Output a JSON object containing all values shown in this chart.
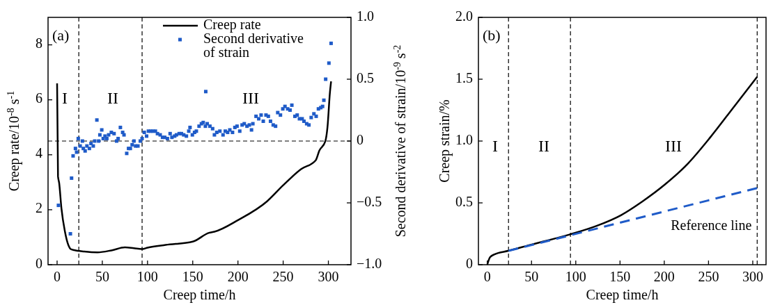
{
  "chart_data": [
    {
      "type": "line",
      "xlabel": "Creep time/h",
      "ylabel": "Creep rate/10$^{-8}$ s$^{-1}$",
      "y2label": "Second derivative of strain/10$^{-9}$ s$^{-2}$",
      "xlim": [
        -10,
        325
      ],
      "xticks": [
        0,
        50,
        100,
        150,
        200,
        250,
        300
      ],
      "ylim": [
        0,
        9
      ],
      "yticks": [
        0,
        2,
        4,
        6,
        8
      ],
      "y2lim": [
        -1,
        1
      ],
      "y2ticks": [
        {
          "value": -1,
          "label": "−1.0"
        },
        {
          "value": -0.5,
          "label": "−0.5"
        },
        0,
        0.5,
        {
          "value": 1,
          "label": "1.0"
        }
      ],
      "grid": false,
      "legend": "top right",
      "ref_lines": [
        {
          "axis": "x",
          "value": 24,
          "color": "#000000",
          "line_style": "dashed"
        },
        {
          "axis": "x",
          "value": 94,
          "color": "#000000",
          "line_style": "dashed"
        },
        {
          "axis": "y2",
          "value": 0,
          "color": "#000000",
          "line_style": "dashed"
        }
      ],
      "annotations": [
        "(a)",
        "I",
        "II",
        "III"
      ],
      "series": [
        {
          "name": "Creep rate",
          "color": "#000000",
          "line_style": "solid",
          "x": [
            0,
            1,
            2.3,
            4.8,
            8.7,
            12.6,
            15,
            19,
            30,
            44.7,
            60,
            75,
            85,
            94,
            100,
            120,
            150,
            168,
            174,
            200,
            232,
            250,
            270,
            286,
            290,
            296.6,
            299,
            301.7,
            303
          ],
          "values": [
            6.6,
            3.22,
            2.97,
            2.05,
            1.2,
            0.7,
            0.57,
            0.53,
            0.48,
            0.45,
            0.52,
            0.63,
            0.6,
            0.57,
            0.62,
            0.72,
            0.84,
            1.16,
            1.2,
            1.62,
            2.3,
            2.89,
            3.48,
            3.8,
            4.15,
            4.49,
            5.0,
            6.26,
            6.67
          ]
        },
        {
          "name": "Second derivative of strain",
          "type": "scatter",
          "axis": "y2",
          "color": "#1f5bc8",
          "marker": "square",
          "x": [
            1.5,
            14.7,
            16,
            17.7,
            20.3,
            21.6,
            23.4,
            25.5,
            28,
            29,
            31,
            33,
            35.7,
            37.5,
            40,
            41.6,
            44,
            46,
            47.3,
            49.4,
            51,
            53,
            55,
            57,
            60,
            63,
            65.8,
            67.5,
            70,
            72.5,
            74,
            77,
            79,
            81,
            83,
            85,
            86.8,
            89.4,
            92,
            94,
            96.4,
            99,
            101,
            103.6,
            106,
            108.7,
            111,
            114,
            116.6,
            119,
            122,
            125,
            127,
            130,
            132,
            135,
            137.5,
            140,
            143,
            145.6,
            147,
            149.6,
            152,
            154,
            157,
            159.6,
            161.6,
            164,
            164.4,
            166,
            169,
            172,
            174,
            176.6,
            180,
            183.5,
            186,
            188.6,
            191,
            194,
            196.6,
            199,
            202,
            204.6,
            207,
            210,
            212.6,
            215,
            216.5,
            220,
            223,
            225.6,
            228,
            231,
            233.6,
            236,
            239,
            241.6,
            244,
            247,
            249.6,
            252,
            255,
            257.6,
            259.6,
            263,
            265.5,
            268,
            271,
            273,
            276,
            278.5,
            281,
            284,
            286.5,
            289,
            291.6,
            293.6,
            295,
            297,
            300.6,
            303
          ],
          "values": [
            -0.52,
            -0.75,
            -0.3,
            -0.12,
            -0.06,
            -0.09,
            0.02,
            -0.04,
            0,
            -0.06,
            -0.08,
            -0.04,
            -0.06,
            -0.02,
            -0.04,
            0,
            0.17,
            0,
            0.05,
            0.09,
            0.02,
            0.04,
            0.02,
            0.05,
            0.07,
            0.06,
            0,
            0.02,
            0.11,
            0.07,
            0.05,
            -0.1,
            -0.06,
            -0.06,
            -0.03,
            0,
            -0.04,
            -0.04,
            0,
            0.02,
            0.07,
            0.04,
            0.08,
            0.08,
            0.08,
            0.08,
            0.06,
            0.05,
            0.03,
            0.03,
            0.02,
            0.06,
            0.03,
            0.04,
            0.05,
            0.06,
            0.06,
            0.05,
            0.04,
            0.08,
            0.11,
            0.05,
            0.07,
            0.08,
            0.12,
            0.14,
            0.15,
            0.12,
            0.4,
            0.14,
            0.12,
            0.1,
            0.05,
            0.07,
            0.08,
            0.05,
            0.08,
            0.07,
            0.09,
            0.07,
            0.11,
            0.12,
            0.08,
            0.13,
            0.14,
            0.12,
            0.13,
            0.09,
            0.14,
            0.2,
            0.18,
            0.21,
            0.16,
            0.21,
            0.2,
            0.16,
            0.13,
            0.12,
            0.23,
            0.21,
            0.26,
            0.28,
            0.26,
            0.25,
            0.29,
            0.2,
            0.21,
            0.18,
            0.18,
            0.16,
            0.14,
            0.13,
            0.19,
            0.22,
            0.2,
            0.26,
            0.27,
            0.28,
            0.33,
            0.5,
            0.63,
            0.79
          ]
        }
      ]
    },
    {
      "type": "line",
      "xlabel": "Creep time/h",
      "ylabel": "Creep strain/%",
      "xlim": [
        -10,
        315
      ],
      "xticks": [
        0,
        50,
        100,
        150,
        200,
        250,
        300
      ],
      "ylim": [
        0,
        2
      ],
      "yticks": [
        0,
        0.5,
        {
          "value": 1,
          "label": "1.0"
        },
        1.5,
        {
          "value": 2,
          "label": "2.0"
        }
      ],
      "grid": false,
      "legend": false,
      "ref_lines": [
        {
          "axis": "x",
          "value": 24,
          "color": "#000000",
          "line_style": "dashed"
        },
        {
          "axis": "x",
          "value": 94,
          "color": "#000000",
          "line_style": "dashed"
        },
        {
          "axis": "x",
          "value": 305,
          "color": "#000000",
          "line_style": "dashed"
        }
      ],
      "annotations": [
        "(b)",
        "I",
        "II",
        "III"
      ],
      "series": [
        {
          "color": "#000000",
          "line_style": "solid",
          "x": [
            0,
            3.1,
            8.2,
            23.6,
            51,
            93.6,
            124,
            151,
            175,
            201,
            227,
            252,
            278,
            305
          ],
          "values": [
            0,
            0.06,
            0.084,
            0.112,
            0.165,
            0.245,
            0.315,
            0.4,
            0.51,
            0.65,
            0.82,
            1.03,
            1.27,
            1.52
          ]
        },
        {
          "name": "Reference line",
          "color": "#1f5bc8",
          "line_style": "dashed",
          "x": [
            24,
            305
          ],
          "values": [
            0.112,
            0.62
          ]
        }
      ]
    }
  ]
}
